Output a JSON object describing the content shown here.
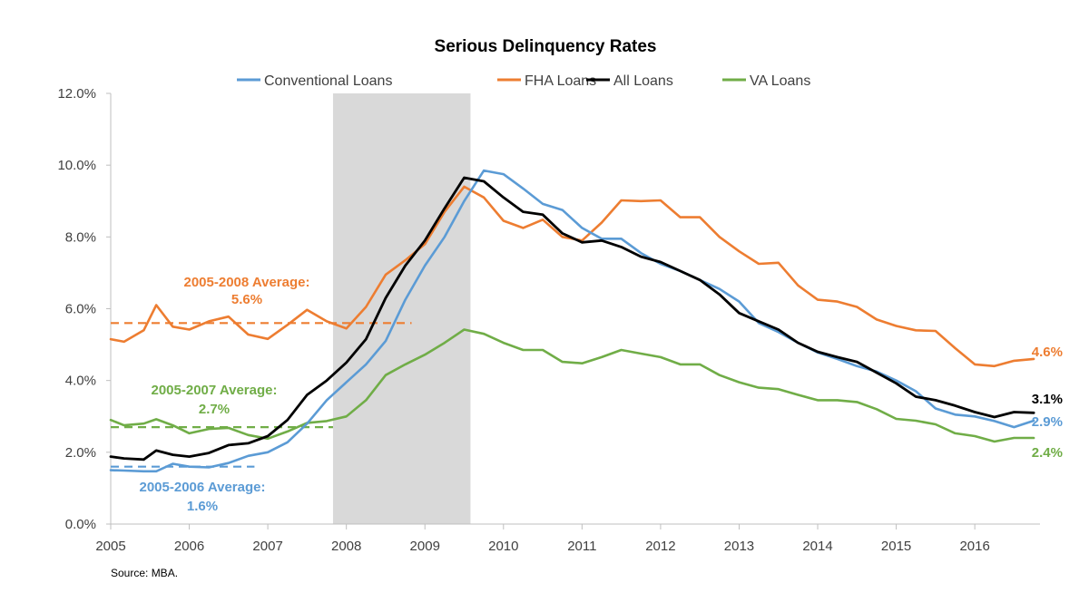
{
  "chart_data": {
    "type": "line",
    "title": "Serious Delinquency Rates",
    "xlabel": "",
    "ylabel": "",
    "x_ticks": [
      "2005",
      "2006",
      "2007",
      "2008",
      "2009",
      "2010",
      "2011",
      "2012",
      "2013",
      "2014",
      "2015",
      "2016"
    ],
    "y_ticks": [
      "0.0%",
      "2.0%",
      "4.0%",
      "6.0%",
      "8.0%",
      "10.0%",
      "12.0%"
    ],
    "xlim": [
      2005.0,
      2016.83
    ],
    "ylim": [
      0,
      12
    ],
    "grid": false,
    "legend_position": "top",
    "x": [
      2005.0,
      2005.17,
      2005.42,
      2005.58,
      2005.79,
      2006.0,
      2006.25,
      2006.5,
      2006.75,
      2007.0,
      2007.25,
      2007.5,
      2007.75,
      2008.0,
      2008.25,
      2008.5,
      2008.75,
      2009.0,
      2009.25,
      2009.5,
      2009.75,
      2010.0,
      2010.25,
      2010.5,
      2010.75,
      2011.0,
      2011.25,
      2011.5,
      2011.75,
      2012.0,
      2012.25,
      2012.5,
      2012.75,
      2013.0,
      2013.25,
      2013.5,
      2013.75,
      2014.0,
      2014.25,
      2014.5,
      2014.75,
      2015.0,
      2015.25,
      2015.5,
      2015.75,
      2016.0,
      2016.25,
      2016.5,
      2016.75
    ],
    "series": [
      {
        "name": "Conventional Loans",
        "color": "#5b9bd5",
        "values": [
          1.5,
          1.49,
          1.47,
          1.47,
          1.68,
          1.6,
          1.58,
          1.7,
          1.9,
          2.0,
          2.28,
          2.8,
          3.45,
          3.95,
          4.45,
          5.1,
          6.25,
          7.2,
          8.0,
          9.0,
          9.85,
          9.75,
          9.35,
          8.92,
          8.75,
          8.25,
          7.95,
          7.95,
          7.55,
          7.25,
          7.05,
          6.8,
          6.55,
          6.2,
          5.6,
          5.35,
          5.05,
          4.78,
          4.6,
          4.4,
          4.25,
          4.0,
          3.7,
          3.22,
          3.05,
          3.0,
          2.87,
          2.7,
          2.88
        ]
      },
      {
        "name": "FHA Loans",
        "color": "#ed7d31",
        "values": [
          5.15,
          5.08,
          5.4,
          6.1,
          5.5,
          5.42,
          5.65,
          5.78,
          5.28,
          5.16,
          5.55,
          5.97,
          5.65,
          5.45,
          6.05,
          6.95,
          7.35,
          7.8,
          8.7,
          9.4,
          9.1,
          8.45,
          8.25,
          8.48,
          8.0,
          7.9,
          8.4,
          9.02,
          9.0,
          9.02,
          8.55,
          8.55,
          8.0,
          7.6,
          7.25,
          7.28,
          6.65,
          6.25,
          6.2,
          6.05,
          5.7,
          5.52,
          5.4,
          5.38,
          4.9,
          4.45,
          4.4,
          4.55,
          4.6
        ]
      },
      {
        "name": "All Loans",
        "color": "#000000",
        "values": [
          1.88,
          1.83,
          1.8,
          2.05,
          1.93,
          1.88,
          1.98,
          2.2,
          2.25,
          2.45,
          2.9,
          3.6,
          4.0,
          4.5,
          5.15,
          6.3,
          7.2,
          7.9,
          8.8,
          9.65,
          9.55,
          9.1,
          8.7,
          8.62,
          8.1,
          7.85,
          7.9,
          7.72,
          7.45,
          7.3,
          7.05,
          6.8,
          6.4,
          5.88,
          5.65,
          5.42,
          5.05,
          4.8,
          4.65,
          4.52,
          4.22,
          3.92,
          3.55,
          3.45,
          3.3,
          3.12,
          2.98,
          3.12,
          3.1
        ]
      },
      {
        "name": "VA Loans",
        "color": "#70ad47",
        "values": [
          2.9,
          2.75,
          2.8,
          2.92,
          2.75,
          2.53,
          2.65,
          2.68,
          2.48,
          2.38,
          2.58,
          2.82,
          2.87,
          3.0,
          3.45,
          4.15,
          4.45,
          4.72,
          5.05,
          5.42,
          5.3,
          5.05,
          4.85,
          4.85,
          4.52,
          4.48,
          4.65,
          4.85,
          4.75,
          4.65,
          4.45,
          4.45,
          4.15,
          3.95,
          3.8,
          3.76,
          3.6,
          3.45,
          3.45,
          3.4,
          3.2,
          2.93,
          2.88,
          2.78,
          2.53,
          2.45,
          2.3,
          2.4,
          2.4
        ]
      }
    ],
    "shaded_region": {
      "x_start": 2007.83,
      "x_end": 2009.58,
      "color": "#d9d9d9"
    },
    "average_lines": [
      {
        "series": "FHA Loans",
        "value": 5.6,
        "x_start": 2005.0,
        "x_end": 2008.83,
        "color": "#ed7d31",
        "label_line1": "2005-2008 Average:",
        "label_line2": "5.6%"
      },
      {
        "series": "VA Loans",
        "value": 2.7,
        "x_start": 2005.0,
        "x_end": 2007.83,
        "color": "#70ad47",
        "label_line1": "2005-2007 Average:",
        "label_line2": "2.7%"
      },
      {
        "series": "Conventional Loans",
        "value": 1.6,
        "x_start": 2005.0,
        "x_end": 2006.83,
        "color": "#5b9bd5",
        "label_line1": "2005-2006 Average:",
        "label_line2": "1.6%"
      }
    ],
    "end_labels": [
      {
        "series": "FHA Loans",
        "text": "4.6%",
        "color": "#ed7d31"
      },
      {
        "series": "All Loans",
        "text": "3.1%",
        "color": "#000000"
      },
      {
        "series": "Conventional Loans",
        "text": "2.9%",
        "color": "#5b9bd5"
      },
      {
        "series": "VA Loans",
        "text": "2.4%",
        "color": "#70ad47"
      }
    ],
    "source": "Source: MBA."
  }
}
